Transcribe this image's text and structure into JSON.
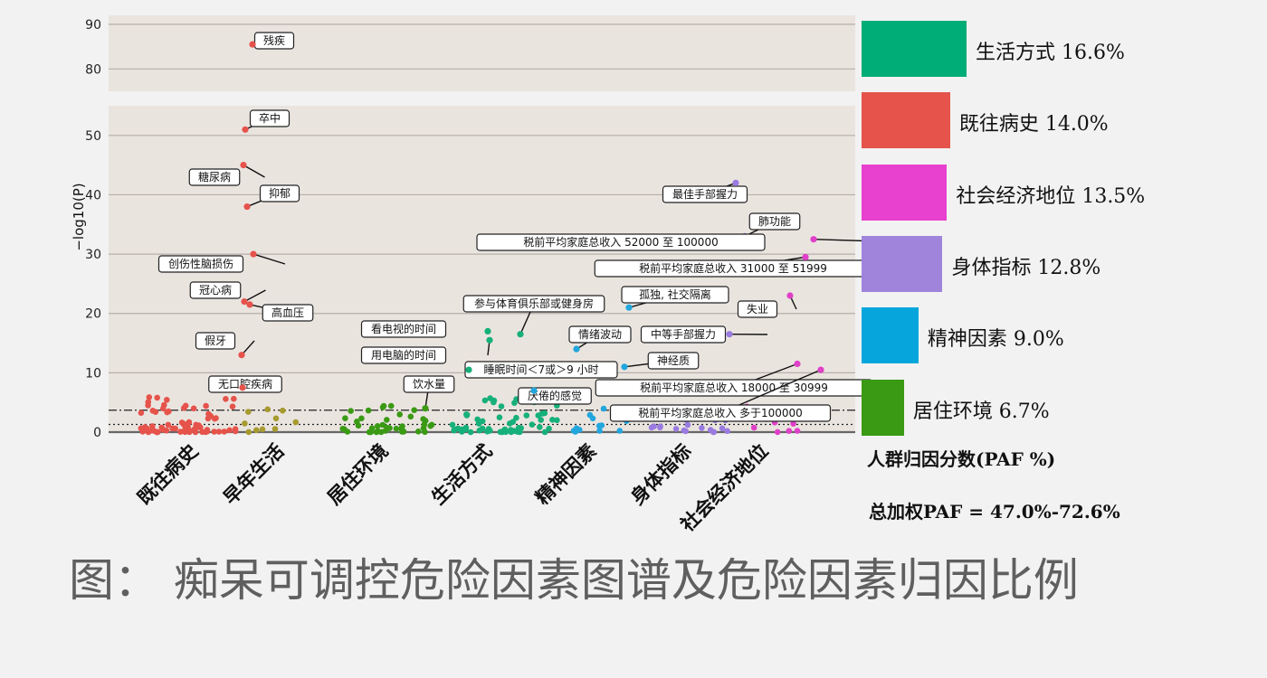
{
  "caption": "图： 痴呆可调控危险因素图谱及危险因素归因比例",
  "chart_data": [
    {
      "type": "scatter",
      "title": "",
      "xlabel": "",
      "ylabel": "−log10(P)",
      "ylim_lower": [
        0,
        55
      ],
      "ylim_upper": [
        75,
        92
      ],
      "yticks": [
        0,
        10,
        20,
        30,
        40,
        50,
        80,
        90
      ],
      "grid": true,
      "thresholds": [
        3.7,
        1.3
      ],
      "categories": [
        "既往病史",
        "早年生活",
        "居住环境",
        "生活方式",
        "精神因素",
        "身体指标",
        "社会经济地位"
      ],
      "colors": {
        "既往病史": "#e5534b",
        "早年生活": "#a79a2e",
        "居住环境": "#3a9a14",
        "生活方式": "#16b07a",
        "精神因素": "#22a6dd",
        "身体指标": "#9a7be0",
        "社会经济地位": "#e040c8"
      },
      "labeled_points": [
        {
          "label": "残疾",
          "category": "既往病史",
          "y": 85.5
        },
        {
          "label": "卒中",
          "category": "既往病史",
          "y": 51
        },
        {
          "label": "糖尿病",
          "category": "既往病史",
          "y": 45
        },
        {
          "label": "抑郁",
          "category": "既往病史",
          "y": 38
        },
        {
          "label": "创伤性脑损伤",
          "category": "既往病史",
          "y": 30
        },
        {
          "label": "冠心病",
          "category": "既往病史",
          "y": 22
        },
        {
          "label": "高血压",
          "category": "既往病史",
          "y": 21.5
        },
        {
          "label": "假牙",
          "category": "既往病史",
          "y": 13
        },
        {
          "label": "无口腔疾病",
          "category": "既往病史",
          "y": 7.5
        },
        {
          "label": "看电视的时间",
          "category": "生活方式",
          "y": 17
        },
        {
          "label": "用电脑的时间",
          "category": "生活方式",
          "y": 15.5
        },
        {
          "label": "饮水量",
          "category": "居住环境",
          "y": 4
        },
        {
          "label": "参与体育俱乐部或健身房",
          "category": "生活方式",
          "y": 16.5
        },
        {
          "label": "睡眠时间＜7或＞9 小时",
          "category": "生活方式",
          "y": 10.5
        },
        {
          "label": "孤独, 社交隔离",
          "category": "精神因素",
          "y": 21
        },
        {
          "label": "情绪波动",
          "category": "精神因素",
          "y": 14
        },
        {
          "label": "厌倦的感觉",
          "category": "精神因素",
          "y": 7
        },
        {
          "label": "神经质",
          "category": "精神因素",
          "y": 11
        },
        {
          "label": "最佳手部握力",
          "category": "身体指标",
          "y": 42
        },
        {
          "label": "肺功能",
          "category": "身体指标",
          "y": 33
        },
        {
          "label": "中等手部握力",
          "category": "身体指标",
          "y": 16.5
        },
        {
          "label": "失业",
          "category": "社会经济地位",
          "y": 23
        },
        {
          "label": "税前平均家庭总收入 52000 至 100000",
          "category": "社会经济地位",
          "y": 32.5
        },
        {
          "label": "税前平均家庭总收入 31000 至 51999",
          "category": "社会经济地位",
          "y": 29.5
        },
        {
          "label": "税前平均家庭总收入 18000 至 30999",
          "category": "社会经济地位",
          "y": 11.5
        },
        {
          "label": "税前平均家庭总收入 多于100000",
          "category": "社会经济地位",
          "y": 10.5
        }
      ]
    },
    {
      "type": "bar",
      "title": "人群归因分数(PAF %)",
      "note": "总加权PAF = 47.0%-72.6%",
      "categories": [
        "生活方式",
        "既往病史",
        "社会经济地位",
        "身体指标",
        "精神因素",
        "居住环境"
      ],
      "values": [
        16.6,
        14.0,
        13.5,
        12.8,
        9.0,
        6.7
      ],
      "labels": [
        "生活方式 16.6%",
        "既往病史 14.0%",
        "社会经济地位 13.5%",
        "身体指标 12.8%",
        "精神因素 9.0%",
        "居住环境 6.7%"
      ],
      "colors": [
        "#00ad76",
        "#e5534b",
        "#e840cf",
        "#a084dc",
        "#06a6dc",
        "#3a9a14"
      ]
    }
  ]
}
